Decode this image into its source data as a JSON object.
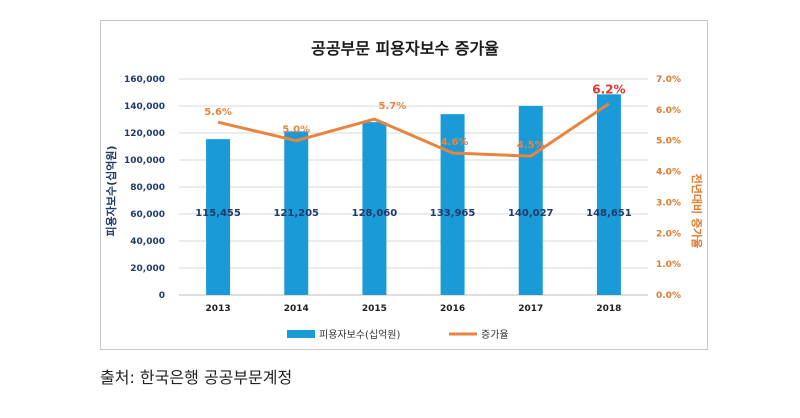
{
  "chart_data": {
    "type": "bar",
    "title": "공공부문 피용자보수 증가율",
    "categories": [
      "2013",
      "2014",
      "2015",
      "2016",
      "2017",
      "2018"
    ],
    "series": [
      {
        "name": "피용자보수(십억원)",
        "type": "bar",
        "axis": "left",
        "values": [
          115455,
          121205,
          128060,
          133965,
          140027,
          148651
        ],
        "labels": [
          "115,455",
          "121,205",
          "128,060",
          "133,965",
          "140,027",
          "148,651"
        ],
        "color": "#1a9bd7"
      },
      {
        "name": "증가율",
        "type": "line",
        "axis": "right",
        "values": [
          5.6,
          5.0,
          5.7,
          4.6,
          4.5,
          6.2
        ],
        "labels": [
          "5.6%",
          "5.0%",
          "5.7%",
          "4.6%",
          "4.5%",
          "6.2%"
        ],
        "color": "#e8843d",
        "highlight_color": "#e8352b"
      }
    ],
    "ylabel": "피용자보수(십억원)",
    "ylabel_right": "전년대비 증가율",
    "ylim": [
      0,
      160000
    ],
    "ylim_right": [
      0,
      7.0
    ],
    "yticks": [
      "0",
      "20,000",
      "40,000",
      "60,000",
      "80,000",
      "100,000",
      "120,000",
      "140,000",
      "160,000"
    ],
    "yticks_right": [
      "0.0%",
      "1.0%",
      "2.0%",
      "3.0%",
      "4.0%",
      "5.0%",
      "6.0%",
      "7.0%"
    ],
    "grid": true,
    "legend": "bottom"
  },
  "source": "출처: 한국은행 공공부문계정"
}
